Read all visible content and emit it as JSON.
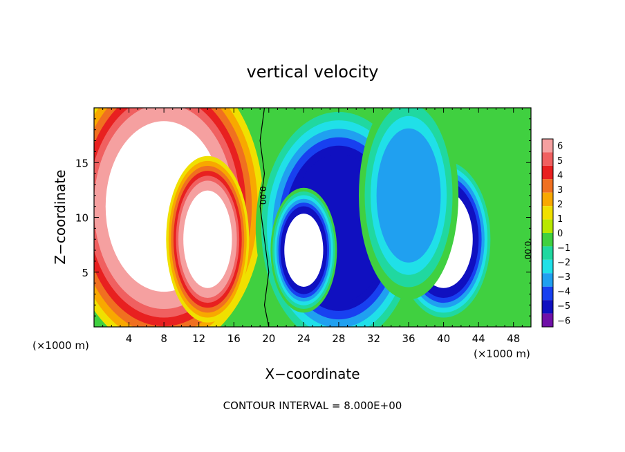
{
  "chart_data": {
    "type": "heatmap",
    "title": "vertical velocity",
    "xlabel": "X−coordinate",
    "ylabel": "Z−coordinate",
    "x_unit_left": "(×1000 m)",
    "x_unit_right": "(×1000 m)",
    "footer": "CONTOUR INTERVAL = 8.000E+00",
    "xlim": [
      0,
      50
    ],
    "ylim": [
      0,
      20
    ],
    "x_ticks": [
      4,
      8,
      12,
      16,
      20,
      24,
      28,
      32,
      36,
      40,
      44,
      48
    ],
    "y_ticks": [
      5,
      10,
      15
    ],
    "contour_labels": [
      {
        "text": "0.00",
        "x": 19,
        "z": 12
      },
      {
        "text": "0.00",
        "x": 49.3,
        "z": 7
      }
    ],
    "colorbar": {
      "ticks": [
        "6",
        "5",
        "4",
        "3",
        "2",
        "1",
        "0",
        "−1",
        "−2",
        "−3",
        "−4",
        "−5",
        "−6"
      ],
      "colors": [
        "#f5a0a0",
        "#f06060",
        "#e82020",
        "#f07020",
        "#f8a800",
        "#f0e000",
        "#b8e800",
        "#40d040",
        "#20d8a0",
        "#20e0e8",
        "#20a0f0",
        "#1840f0",
        "#1010c0",
        "#7010a8"
      ]
    },
    "features": [
      {
        "kind": "updraft",
        "x": 8,
        "z": 11,
        "rx": 6,
        "ry": 7,
        "w": 8
      },
      {
        "kind": "updraft",
        "x": 13,
        "z": 8,
        "rx": 2.5,
        "ry": 4,
        "w": 7
      },
      {
        "kind": "downdraft",
        "x": 28,
        "z": 9,
        "rx": 5,
        "ry": 6,
        "w": -6
      },
      {
        "kind": "downdraft",
        "x": 24,
        "z": 7,
        "rx": 2,
        "ry": 3,
        "w": -7
      },
      {
        "kind": "downdraft",
        "x": 40,
        "z": 8,
        "rx": 3,
        "ry": 4,
        "w": -7
      },
      {
        "kind": "downdraft",
        "x": 36,
        "z": 12,
        "rx": 3,
        "ry": 5,
        "w": -3
      }
    ]
  }
}
